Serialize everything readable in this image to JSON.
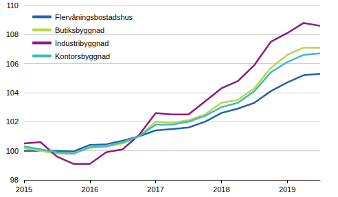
{
  "chart_data": {
    "type": "line",
    "categories": [
      "2015",
      null,
      null,
      null,
      "2016",
      null,
      null,
      null,
      "2017",
      null,
      null,
      null,
      "2018",
      null,
      null,
      null,
      "2019",
      null,
      null
    ],
    "series": [
      {
        "name": "Flervåningsbostadshus",
        "color": "#1f64a8",
        "values": [
          100.0,
          100.0,
          100.0,
          99.95,
          100.4,
          100.45,
          100.7,
          101.0,
          101.4,
          101.5,
          101.6,
          102.0,
          102.6,
          102.9,
          103.3,
          104.1,
          104.7,
          105.2,
          105.3
        ]
      },
      {
        "name": "Butiksbyggnad",
        "color": "#bcd64a",
        "values": [
          100.2,
          100.0,
          99.8,
          99.8,
          100.2,
          100.3,
          100.5,
          101.0,
          102.0,
          101.95,
          102.1,
          102.5,
          103.3,
          103.5,
          104.3,
          105.7,
          106.6,
          107.1,
          107.1
        ]
      },
      {
        "name": "Industribyggnad",
        "color": "#8e1b80",
        "values": [
          100.5,
          100.6,
          99.6,
          99.1,
          99.1,
          99.9,
          100.1,
          101.1,
          102.6,
          102.5,
          102.5,
          103.4,
          104.3,
          104.8,
          105.9,
          107.5,
          108.1,
          108.8,
          108.6
        ]
      },
      {
        "name": "Kontorsbyggnad",
        "color": "#3dbcc0",
        "values": [
          100.3,
          100.1,
          99.9,
          99.8,
          100.25,
          100.3,
          100.6,
          101.0,
          101.8,
          101.8,
          102.0,
          102.4,
          103.0,
          103.3,
          104.1,
          105.4,
          106.1,
          106.6,
          106.7
        ]
      }
    ],
    "ylim": [
      98,
      110
    ],
    "yticks": [
      98,
      100,
      102,
      104,
      106,
      108,
      110
    ],
    "grid": true,
    "legend": "upper left"
  }
}
